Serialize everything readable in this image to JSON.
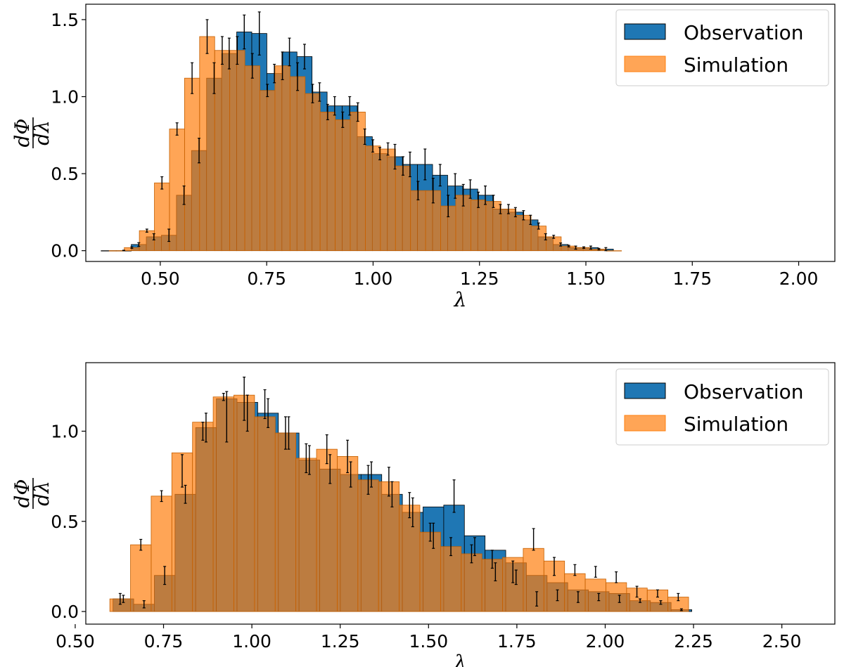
{
  "colors": {
    "observation": "#1f77b4",
    "simulation": "#ff7f0e"
  },
  "chart_data": [
    {
      "type": "bar",
      "title": "",
      "xlabel": "λ",
      "ylabel_num": "dΦ",
      "ylabel_den": "dλ",
      "xlim": [
        0.325,
        2.085
      ],
      "ylim": [
        -0.07,
        1.6
      ],
      "xticks": [
        0.5,
        0.75,
        1.0,
        1.25,
        1.5,
        1.75,
        2.0
      ],
      "xtick_labels": [
        "0.50",
        "0.75",
        "1.00",
        "1.25",
        "1.50",
        "1.75",
        "2.00"
      ],
      "yticks": [
        0.0,
        0.5,
        1.0,
        1.5
      ],
      "ytick_labels": [
        "0.0",
        "0.5",
        "1.0",
        "1.5"
      ],
      "legend": [
        "Observation",
        "Simulation"
      ],
      "legend_position": "top-right",
      "series": [
        {
          "name": "Observation",
          "bin_start": 0.361,
          "bin_width": 0.0354,
          "values": [
            0.0,
            0.0,
            0.04,
            0.09,
            0.1,
            0.36,
            0.65,
            1.12,
            1.28,
            1.42,
            1.41,
            1.15,
            1.29,
            1.26,
            1.03,
            0.94,
            0.94,
            0.74,
            0.63,
            0.61,
            0.56,
            0.56,
            0.49,
            0.42,
            0.4,
            0.36,
            0.27,
            0.25,
            0.2,
            0.09,
            0.04,
            0.02,
            0.02,
            0.01
          ],
          "errors": [
            0.0,
            0.003,
            0.012,
            0.02,
            0.04,
            0.06,
            0.08,
            0.1,
            0.1,
            0.11,
            0.14,
            0.06,
            0.09,
            0.08,
            0.06,
            0.06,
            0.06,
            0.05,
            0.04,
            0.08,
            0.08,
            0.1,
            0.07,
            0.08,
            0.06,
            0.06,
            0.03,
            0.03,
            0.03,
            0.02,
            0.01,
            0.01,
            0.01,
            0.01
          ]
        },
        {
          "name": "Simulation",
          "bin_start": 0.38,
          "bin_width": 0.0354,
          "values": [
            0.0,
            0.02,
            0.13,
            0.44,
            0.79,
            1.12,
            1.39,
            1.3,
            1.3,
            1.2,
            1.04,
            1.2,
            1.13,
            1.02,
            0.9,
            0.85,
            0.9,
            0.68,
            0.66,
            0.55,
            0.39,
            0.39,
            0.29,
            0.36,
            0.33,
            0.32,
            0.27,
            0.23,
            0.16,
            0.09,
            0.03,
            0.02,
            0.01,
            0.0
          ],
          "errors": [
            0.0,
            0.005,
            0.01,
            0.04,
            0.04,
            0.1,
            0.11,
            0.09,
            0.09,
            0.08,
            0.04,
            0.09,
            0.09,
            0.06,
            0.05,
            0.05,
            0.06,
            0.04,
            0.04,
            0.06,
            0.06,
            0.08,
            0.07,
            0.07,
            0.05,
            0.04,
            0.03,
            0.03,
            0.02,
            0.01,
            0.005,
            0.005,
            0.005,
            0.0
          ]
        }
      ]
    },
    {
      "type": "bar",
      "title": "",
      "xlabel": "λ",
      "ylabel_num": "dΦ",
      "ylabel_den": "dλ",
      "xlim": [
        0.53,
        2.65
      ],
      "ylim": [
        -0.07,
        1.38
      ],
      "xticks": [
        0.5,
        0.75,
        1.0,
        1.25,
        1.5,
        1.75,
        2.0,
        2.25,
        2.5
      ],
      "xtick_labels": [
        "0.50",
        "0.75",
        "1.00",
        "1.25",
        "1.50",
        "1.75",
        "2.00",
        "2.25",
        "2.50"
      ],
      "yticks": [
        0.0,
        0.5,
        1.0
      ],
      "ytick_labels": [
        "0.0",
        "0.5",
        "1.0"
      ],
      "legend": [
        "Observation",
        "Simulation"
      ],
      "legend_position": "top-right",
      "series": [
        {
          "name": "Observation",
          "bin_start": 0.607,
          "bin_width": 0.0585,
          "values": [
            0.07,
            0.04,
            0.2,
            0.65,
            1.02,
            1.18,
            1.16,
            1.1,
            0.99,
            0.84,
            0.79,
            0.76,
            0.76,
            0.65,
            0.55,
            0.58,
            0.59,
            0.42,
            0.34,
            0.27,
            0.2,
            0.16,
            0.12,
            0.11,
            0.1,
            0.06,
            0.05,
            0.01
          ],
          "errors": [
            0.02,
            0.02,
            0.05,
            0.05,
            0.08,
            0.14,
            0.1,
            0.08,
            0.09,
            0.08,
            0.08,
            0.07,
            0.07,
            0.07,
            0.08,
            0.07,
            0.09,
            0.05,
            0.05,
            0.04,
            0.04,
            0.03,
            0.03,
            0.02,
            0.02,
            0.01,
            0.01,
            0.005
          ],
          "err_offset": [
            0,
            0,
            0,
            0,
            0,
            -0.1,
            -0.06,
            0,
            0,
            0,
            0,
            0,
            0,
            0,
            0,
            -0.16,
            0.05,
            -0.06,
            -0.12,
            -0.08,
            -0.13,
            -0.07,
            -0.04,
            -0.03,
            -0.03,
            0,
            0,
            0
          ]
        },
        {
          "name": "Simulation",
          "bin_start": 0.598,
          "bin_width": 0.0585,
          "values": [
            0.07,
            0.37,
            0.64,
            0.88,
            1.05,
            1.19,
            1.2,
            1.08,
            0.99,
            0.85,
            0.9,
            0.86,
            0.73,
            0.72,
            0.59,
            0.44,
            0.36,
            0.32,
            0.29,
            0.3,
            0.35,
            0.28,
            0.21,
            0.18,
            0.16,
            0.13,
            0.12,
            0.08
          ],
          "errors": [
            0.03,
            0.03,
            0.03,
            0.09,
            0.05,
            0.02,
            0.12,
            0.08,
            0.09,
            0.08,
            0.08,
            0.09,
            0.08,
            0.08,
            0.07,
            0.05,
            0.05,
            0.05,
            0.05,
            0.06,
            0.06,
            0.05,
            0.03,
            0.03,
            0.03,
            0.03,
            0.02,
            0.02
          ],
          "err_offset": [
            0,
            0,
            0,
            -0.1,
            -0.05,
            0,
            -0.02,
            0.07,
            0,
            0,
            0,
            0,
            0,
            0,
            0,
            0,
            0,
            0,
            0,
            -0.08,
            0.05,
            -0.03,
            0.02,
            0.04,
            0.03,
            -0.02,
            -0.02,
            0
          ]
        }
      ]
    }
  ]
}
